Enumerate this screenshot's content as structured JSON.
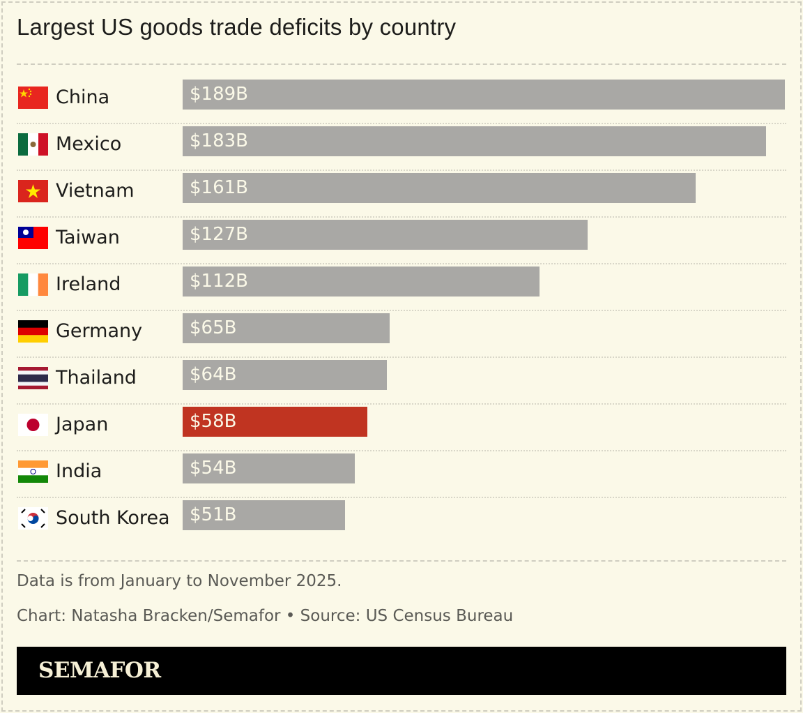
{
  "chart_data": {
    "type": "bar",
    "orientation": "horizontal",
    "title": "Largest US goods trade deficits by country",
    "categories": [
      "China",
      "Mexico",
      "Vietnam",
      "Taiwan",
      "Ireland",
      "Germany",
      "Thailand",
      "Japan",
      "India",
      "South Korea"
    ],
    "values": [
      189,
      183,
      161,
      127,
      112,
      65,
      64,
      58,
      54,
      51
    ],
    "value_labels": [
      "$189B",
      "$183B",
      "$161B",
      "$127B",
      "$112B",
      "$65B",
      "$64B",
      "$58B",
      "$54B",
      "$51B"
    ],
    "flags": [
      "china-flag-icon",
      "mexico-flag-icon",
      "vietnam-flag-icon",
      "taiwan-flag-icon",
      "ireland-flag-icon",
      "germany-flag-icon",
      "thailand-flag-icon",
      "japan-flag-icon",
      "india-flag-icon",
      "south-korea-flag-icon"
    ],
    "highlight": "Japan",
    "xlim": [
      0,
      189
    ],
    "grid": false,
    "colors": {
      "bar": "#a9a8a5",
      "highlight": "#c03421",
      "background": "#fbf9e8"
    }
  },
  "footer": {
    "note": "Data is from January to November 2025.",
    "credit": "Chart: Natasha Bracken/Semafor • Source: US Census Bureau",
    "brand": "SEMAFOR"
  }
}
